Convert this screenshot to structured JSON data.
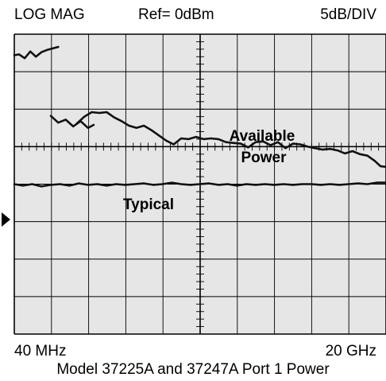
{
  "header": {
    "mode": "LOG MAG",
    "reference": "Ref= 0dBm",
    "scale": "5dB/DIV"
  },
  "footer": {
    "start_freq": "40 MHz",
    "stop_freq": "20 GHz",
    "caption": "Model 37225A and 37247A Port 1 Power"
  },
  "colors": {
    "trace": "#111111",
    "grid_bg": "#e6e6e6",
    "grid_line": "#000000"
  },
  "reference_marker": "triangle-right-icon",
  "chart_data": {
    "type": "line",
    "title": "Model 37225A and 37247A Port 1 Power",
    "x_unit": "GHz",
    "xlim": [
      0.04,
      20
    ],
    "x_scale": "linear",
    "x_tick_labels": [
      "40 MHz",
      "20 GHz"
    ],
    "y_unit": "dBm",
    "ylim": [
      -25,
      15
    ],
    "y_reference": 0,
    "y_per_division": 5,
    "divisions": {
      "x": 10,
      "y": 8
    },
    "grid": true,
    "annotations": [
      "Available Power",
      "Typical"
    ],
    "series": [
      {
        "name": "Available Power",
        "segments": [
          [
            [
              0.04,
              12.2
            ],
            [
              0.3,
              12.3
            ],
            [
              0.6,
              11.8
            ],
            [
              0.9,
              12.7
            ],
            [
              1.2,
              12.0
            ],
            [
              1.5,
              12.6
            ],
            [
              1.8,
              12.9
            ],
            [
              2.1,
              13.1
            ],
            [
              2.4,
              13.3
            ]
          ],
          [
            [
              2.0,
              4.1
            ],
            [
              2.4,
              3.2
            ],
            [
              2.8,
              3.6
            ],
            [
              3.2,
              2.7
            ],
            [
              3.6,
              3.4
            ],
            [
              4.0,
              2.5
            ],
            [
              4.3,
              2.9
            ]
          ],
          [
            [
              3.4,
              3.1
            ],
            [
              3.8,
              4.0
            ],
            [
              4.2,
              4.6
            ],
            [
              4.6,
              4.5
            ],
            [
              5.0,
              4.6
            ],
            [
              5.4,
              3.9
            ],
            [
              5.8,
              3.4
            ],
            [
              6.2,
              2.8
            ],
            [
              6.6,
              2.5
            ],
            [
              7.0,
              2.8
            ],
            [
              7.4,
              2.2
            ],
            [
              7.8,
              1.5
            ],
            [
              8.2,
              0.8
            ],
            [
              8.6,
              0.3
            ],
            [
              9.0,
              1.1
            ],
            [
              9.4,
              1.0
            ],
            [
              9.8,
              1.3
            ],
            [
              10.2,
              1.0
            ],
            [
              10.6,
              1.1
            ],
            [
              11.0,
              1.0
            ],
            [
              11.4,
              0.6
            ],
            [
              11.8,
              0.5
            ],
            [
              12.2,
              0.4
            ],
            [
              12.6,
              -0.1
            ],
            [
              13.0,
              0.6
            ],
            [
              13.4,
              0.7
            ],
            [
              13.8,
              0.2
            ],
            [
              14.2,
              0.6
            ],
            [
              14.6,
              -0.2
            ],
            [
              15.0,
              0.4
            ],
            [
              15.4,
              0.3
            ],
            [
              15.8,
              0.0
            ],
            [
              16.2,
              -0.2
            ],
            [
              16.6,
              -0.4
            ],
            [
              17.0,
              -0.3
            ],
            [
              17.4,
              -0.5
            ],
            [
              17.8,
              -0.9
            ],
            [
              18.2,
              -0.6
            ],
            [
              18.6,
              -1.0
            ],
            [
              19.0,
              -1.2
            ],
            [
              19.4,
              -1.9
            ],
            [
              19.7,
              -2.6
            ],
            [
              20.0,
              -2.7
            ]
          ]
        ]
      },
      {
        "name": "Typical",
        "segments": [
          [
            [
              0.04,
              -5.0
            ],
            [
              0.5,
              -5.2
            ],
            [
              1.0,
              -5.0
            ],
            [
              1.5,
              -5.3
            ],
            [
              2.0,
              -5.1
            ],
            [
              2.5,
              -5.0
            ],
            [
              3.0,
              -5.2
            ],
            [
              3.5,
              -4.9
            ],
            [
              4.0,
              -5.1
            ],
            [
              4.5,
              -5.0
            ],
            [
              5.0,
              -5.2
            ],
            [
              5.5,
              -5.0
            ],
            [
              6.0,
              -5.1
            ],
            [
              6.5,
              -5.0
            ],
            [
              7.0,
              -4.9
            ],
            [
              7.5,
              -5.1
            ],
            [
              8.0,
              -5.0
            ],
            [
              8.5,
              -4.8
            ],
            [
              9.0,
              -5.0
            ],
            [
              9.5,
              -5.1
            ],
            [
              10.0,
              -5.0
            ],
            [
              10.5,
              -4.9
            ],
            [
              11.0,
              -5.1
            ],
            [
              11.5,
              -5.0
            ],
            [
              12.0,
              -5.2
            ],
            [
              12.5,
              -5.0
            ],
            [
              13.0,
              -5.1
            ],
            [
              13.5,
              -5.0
            ],
            [
              14.0,
              -5.1
            ],
            [
              14.5,
              -5.0
            ],
            [
              15.0,
              -5.1
            ],
            [
              15.5,
              -5.0
            ],
            [
              16.0,
              -5.0
            ],
            [
              16.5,
              -5.1
            ],
            [
              17.0,
              -5.0
            ],
            [
              17.5,
              -5.1
            ],
            [
              18.0,
              -5.0
            ],
            [
              18.5,
              -4.9
            ],
            [
              19.0,
              -5.0
            ],
            [
              19.5,
              -4.8
            ],
            [
              20.0,
              -4.8
            ]
          ]
        ]
      }
    ]
  }
}
